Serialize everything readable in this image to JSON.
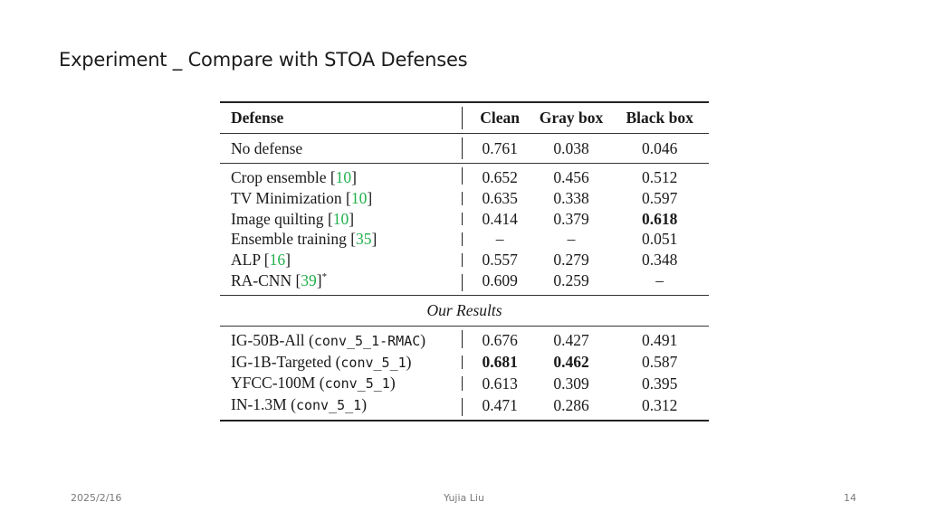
{
  "slide": {
    "title": "Experiment _ Compare with STOA Defenses",
    "footer_date": "2025/2/16",
    "footer_author": "Yujia Liu",
    "page_number": "14"
  },
  "table": {
    "headers": {
      "defense": "Defense",
      "clean": "Clean",
      "gray": "Gray box",
      "black": "Black box"
    },
    "no_defense": {
      "name": "No defense",
      "clean": "0.761",
      "gray": "0.038",
      "black": "0.046"
    },
    "defenses": [
      {
        "name": "Crop ensemble",
        "cite": "10",
        "suffix": "",
        "clean": "0.652",
        "gray": "0.456",
        "black": "0.512"
      },
      {
        "name": "TV Minimization",
        "cite": "10",
        "suffix": "",
        "clean": "0.635",
        "gray": "0.338",
        "black": "0.597"
      },
      {
        "name": "Image quilting",
        "cite": "10",
        "suffix": "",
        "clean": "0.414",
        "gray": "0.379",
        "black": "0.618"
      },
      {
        "name": "Ensemble training",
        "cite": "35",
        "suffix": "",
        "clean": "–",
        "gray": "–",
        "black": "0.051"
      },
      {
        "name": "ALP",
        "cite": "16",
        "suffix": "",
        "clean": "0.557",
        "gray": "0.279",
        "black": "0.348"
      },
      {
        "name": "RA-CNN",
        "cite": "39",
        "suffix": "*",
        "clean": "0.609",
        "gray": "0.259",
        "black": "–"
      }
    ],
    "section_label": "Our Results",
    "results": [
      {
        "name": "IG-50B-All",
        "code": "conv_5_1-RMAC",
        "clean": "0.676",
        "gray": "0.427",
        "black": "0.491"
      },
      {
        "name": "IG-1B-Targeted",
        "code": "conv_5_1",
        "clean": "0.681",
        "gray": "0.462",
        "black": "0.587"
      },
      {
        "name": "YFCC-100M",
        "code": "conv_5_1",
        "clean": "0.613",
        "gray": "0.309",
        "black": "0.395"
      },
      {
        "name": "IN-1.3M",
        "code": "conv_5_1",
        "clean": "0.471",
        "gray": "0.286",
        "black": "0.312"
      }
    ]
  }
}
